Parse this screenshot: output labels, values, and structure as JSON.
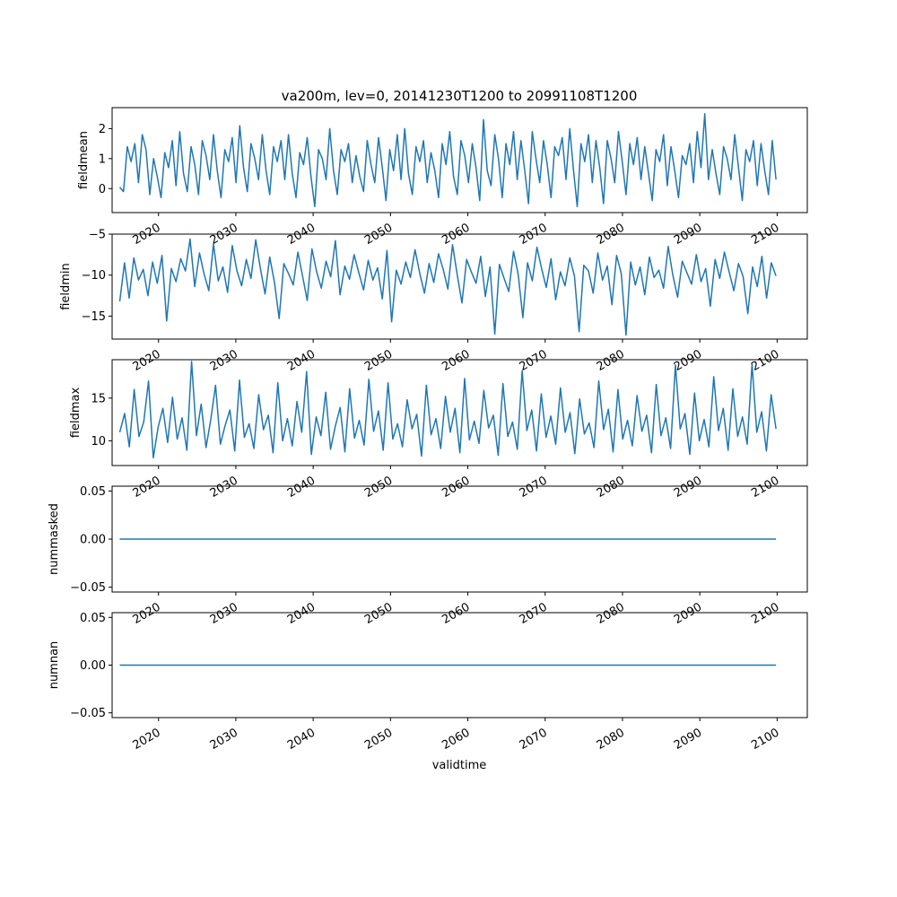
{
  "figure": {
    "title": "va200m, lev=0, 20141230T1200 to 20991108T1200",
    "xlabel": "validtime",
    "line_color": "#1f77b4"
  },
  "chart_data": [
    {
      "type": "line",
      "ylabel": "fieldmean",
      "xlim": [
        2014.0,
        2103.9
      ],
      "ylim": [
        -0.8,
        2.7
      ],
      "yticks": [
        0,
        1,
        2
      ],
      "ytick_labels": [
        "0",
        "1",
        "2"
      ],
      "xticks": [
        2020,
        2030,
        2040,
        2050,
        2060,
        2070,
        2080,
        2090,
        2100
      ],
      "xtick_labels": [
        "2020",
        "2030",
        "2040",
        "2050",
        "2060",
        "2070",
        "2080",
        "2090",
        "2100"
      ],
      "x_range": [
        2014.99,
        2099.85
      ],
      "series": [
        {
          "x_start": 2014.99,
          "x_end": 2099.85,
          "values": [
            0.05,
            -0.1,
            1.4,
            0.9,
            1.5,
            0.2,
            1.8,
            1.3,
            -0.2,
            1.0,
            0.4,
            -0.3,
            1.2,
            0.7,
            1.6,
            0.1,
            1.9,
            0.5,
            -0.1,
            1.4,
            0.8,
            -0.2,
            1.6,
            1.1,
            0.3,
            1.8,
            0.6,
            -0.3,
            1.3,
            0.9,
            1.7,
            0.2,
            2.1,
            0.7,
            -0.1,
            1.5,
            1.0,
            0.3,
            1.8,
            0.6,
            -0.2,
            1.4,
            0.9,
            1.6,
            0.3,
            1.8,
            0.5,
            -0.3,
            1.2,
            0.8,
            1.7,
            0.4,
            -0.6,
            1.3,
            1.0,
            0.3,
            2.0,
            0.6,
            -0.2,
            1.3,
            0.9,
            1.5,
            0.2,
            1.1,
            0.4,
            -0.1,
            1.6,
            0.8,
            0.2,
            1.7,
            0.7,
            -0.4,
            1.3,
            0.6,
            1.8,
            0.3,
            2.0,
            0.5,
            -0.2,
            1.4,
            0.9,
            1.6,
            0.2,
            1.2,
            0.6,
            -0.3,
            1.5,
            0.8,
            1.9,
            0.4,
            -0.2,
            1.6,
            1.1,
            0.2,
            1.5,
            0.7,
            -0.4,
            2.3,
            0.6,
            0.1,
            1.8,
            1.0,
            -0.3,
            1.5,
            0.8,
            1.9,
            0.3,
            1.6,
            0.6,
            -0.5,
            1.9,
            1.0,
            0.2,
            1.6,
            0.8,
            -0.3,
            1.4,
            1.1,
            1.7,
            0.3,
            2.0,
            0.6,
            -0.6,
            1.5,
            0.9,
            1.8,
            0.2,
            1.6,
            0.7,
            -0.5,
            1.6,
            1.0,
            0.2,
            1.9,
            0.9,
            -0.2,
            1.5,
            0.8,
            1.7,
            0.3,
            1.4,
            0.5,
            -0.4,
            1.3,
            0.9,
            1.8,
            0.1,
            1.4,
            0.6,
            -0.3,
            1.1,
            0.8,
            1.5,
            0.2,
            1.9,
            0.7,
            2.5,
            0.3,
            1.3,
            0.5,
            -0.2,
            1.4,
            1.0,
            0.3,
            1.8,
            0.7,
            -0.4,
            1.3,
            0.9,
            1.6,
            0.1,
            1.5,
            0.6,
            -0.2,
            1.6,
            0.3
          ]
        }
      ]
    },
    {
      "type": "line",
      "ylabel": "fieldmin",
      "xlim": [
        2014.0,
        2103.9
      ],
      "ylim": [
        -17.8,
        -5.0
      ],
      "yticks": [
        -15,
        -10,
        -5
      ],
      "ytick_labels": [
        "−15",
        "−10",
        "−5"
      ],
      "xticks": [
        2020,
        2030,
        2040,
        2050,
        2060,
        2070,
        2080,
        2090,
        2100
      ],
      "xtick_labels": [
        "2020",
        "2030",
        "2040",
        "2050",
        "2060",
        "2070",
        "2080",
        "2090",
        "2100"
      ],
      "x_range": [
        2014.99,
        2099.85
      ],
      "series": [
        {
          "x_start": 2014.99,
          "x_end": 2099.85,
          "values": [
            -13.2,
            -8.5,
            -12.8,
            -7.9,
            -10.6,
            -9.3,
            -12.5,
            -8.4,
            -11.0,
            -7.6,
            -15.6,
            -9.2,
            -10.8,
            -8.0,
            -9.5,
            -5.6,
            -11.4,
            -7.3,
            -9.9,
            -11.9,
            -6.2,
            -10.7,
            -9.0,
            -12.1,
            -6.4,
            -9.5,
            -11.3,
            -8.1,
            -10.4,
            -5.7,
            -9.2,
            -12.3,
            -7.8,
            -10.9,
            -15.3,
            -8.6,
            -9.8,
            -11.2,
            -7.2,
            -10.1,
            -13.1,
            -6.8,
            -9.6,
            -11.6,
            -8.3,
            -10.2,
            -5.8,
            -12.4,
            -8.9,
            -10.5,
            -7.5,
            -9.7,
            -11.8,
            -8.2,
            -10.6,
            -9.1,
            -12.9,
            -7.0,
            -15.7,
            -9.4,
            -11.1,
            -8.4,
            -10.3,
            -6.9,
            -9.8,
            -12.2,
            -8.6,
            -10.9,
            -7.4,
            -9.3,
            -11.7,
            -6.3,
            -10.0,
            -13.4,
            -8.1,
            -9.6,
            -11.0,
            -7.7,
            -12.6,
            -9.0,
            -17.2,
            -8.7,
            -10.4,
            -12.0,
            -7.1,
            -9.9,
            -15.2,
            -8.5,
            -10.7,
            -6.6,
            -9.2,
            -11.5,
            -8.0,
            -13.0,
            -9.6,
            -11.3,
            -7.9,
            -10.1,
            -16.9,
            -8.8,
            -9.5,
            -12.2,
            -7.3,
            -10.6,
            -8.9,
            -13.6,
            -7.6,
            -9.8,
            -17.3,
            -8.4,
            -11.2,
            -9.0,
            -12.4,
            -7.8,
            -10.3,
            -9.4,
            -11.6,
            -6.5,
            -10.0,
            -12.7,
            -8.3,
            -9.7,
            -11.1,
            -7.5,
            -10.8,
            -9.2,
            -13.8,
            -8.1,
            -10.4,
            -7.2,
            -9.6,
            -11.9,
            -8.6,
            -10.2,
            -14.7,
            -9.0,
            -11.4,
            -7.7,
            -12.8,
            -8.5,
            -10.1
          ]
        }
      ]
    },
    {
      "type": "line",
      "ylabel": "fieldmax",
      "xlim": [
        2014.0,
        2103.9
      ],
      "ylim": [
        7.1,
        19.5
      ],
      "yticks": [
        10,
        15
      ],
      "ytick_labels": [
        "10",
        "15"
      ],
      "xticks": [
        2020,
        2030,
        2040,
        2050,
        2060,
        2070,
        2080,
        2090,
        2100
      ],
      "xtick_labels": [
        "2020",
        "2030",
        "2040",
        "2050",
        "2060",
        "2070",
        "2080",
        "2090",
        "2100"
      ],
      "x_range": [
        2014.99,
        2099.85
      ],
      "series": [
        {
          "x_start": 2014.99,
          "x_end": 2099.85,
          "values": [
            11.0,
            13.2,
            9.3,
            16.0,
            10.5,
            12.2,
            17.0,
            8.0,
            11.6,
            13.8,
            9.8,
            15.1,
            10.2,
            12.7,
            8.9,
            19.3,
            10.6,
            14.3,
            9.2,
            12.5,
            16.5,
            9.6,
            11.8,
            13.6,
            8.8,
            17.1,
            10.4,
            12.0,
            9.1,
            15.4,
            11.3,
            13.0,
            8.6,
            16.8,
            10.0,
            12.6,
            9.4,
            14.6,
            11.0,
            18.1,
            8.4,
            12.8,
            10.6,
            15.7,
            9.0,
            11.7,
            13.9,
            8.7,
            16.1,
            10.3,
            12.4,
            9.5,
            17.2,
            11.1,
            13.5,
            8.9,
            16.8,
            10.2,
            12.0,
            9.3,
            14.8,
            11.4,
            13.1,
            8.2,
            16.5,
            10.7,
            12.6,
            9.1,
            15.2,
            11.0,
            13.8,
            8.6,
            17.3,
            10.1,
            12.3,
            9.7,
            15.9,
            11.5,
            13.0,
            8.3,
            16.7,
            10.5,
            12.2,
            9.0,
            18.2,
            11.2,
            13.6,
            8.8,
            15.5,
            10.4,
            12.9,
            9.6,
            16.2,
            11.0,
            13.3,
            8.5,
            14.9,
            10.8,
            12.1,
            9.2,
            17.0,
            11.3,
            13.7,
            8.7,
            16.0,
            10.2,
            12.4,
            9.4,
            15.3,
            11.1,
            13.0,
            8.6,
            16.6,
            10.6,
            12.7,
            9.1,
            18.9,
            11.4,
            13.2,
            8.4,
            15.6,
            10.0,
            12.5,
            9.3,
            17.5,
            11.2,
            13.8,
            8.9,
            16.1,
            10.5,
            12.8,
            9.6,
            19.0,
            11.0,
            13.4,
            8.8,
            15.4,
            11.4
          ]
        }
      ]
    },
    {
      "type": "line",
      "ylabel": "nummasked",
      "xlim": [
        2014.0,
        2103.9
      ],
      "ylim": [
        -0.055,
        0.055
      ],
      "yticks": [
        -0.05,
        0.0,
        0.05
      ],
      "ytick_labels": [
        "−0.05",
        "0.00",
        "0.05"
      ],
      "xticks": [
        2020,
        2030,
        2040,
        2050,
        2060,
        2070,
        2080,
        2090,
        2100
      ],
      "xtick_labels": [
        "2020",
        "2030",
        "2040",
        "2050",
        "2060",
        "2070",
        "2080",
        "2090",
        "2100"
      ],
      "x_range": [
        2014.99,
        2099.85
      ],
      "series": [
        {
          "x_start": 2014.99,
          "x_end": 2099.85,
          "values": [
            0,
            0
          ]
        }
      ]
    },
    {
      "type": "line",
      "ylabel": "numnan",
      "xlim": [
        2014.0,
        2103.9
      ],
      "ylim": [
        -0.055,
        0.055
      ],
      "yticks": [
        -0.05,
        0.0,
        0.05
      ],
      "ytick_labels": [
        "−0.05",
        "0.00",
        "0.05"
      ],
      "xticks": [
        2020,
        2030,
        2040,
        2050,
        2060,
        2070,
        2080,
        2090,
        2100
      ],
      "xtick_labels": [
        "2020",
        "2030",
        "2040",
        "2050",
        "2060",
        "2070",
        "2080",
        "2090",
        "2100"
      ],
      "x_range": [
        2014.99,
        2099.85
      ],
      "series": [
        {
          "x_start": 2014.99,
          "x_end": 2099.85,
          "values": [
            0,
            0
          ]
        }
      ]
    }
  ]
}
